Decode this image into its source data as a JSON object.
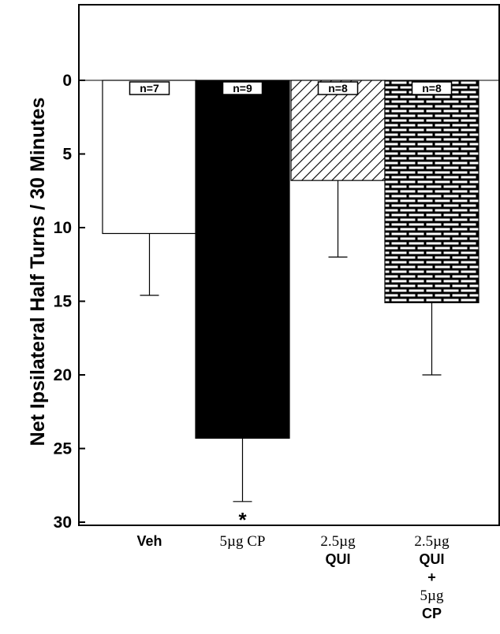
{
  "chart_data": {
    "type": "bar",
    "ylabel": "Net Ipsilateral Half Turns / 30 Minutes",
    "ylim": [
      0,
      30
    ],
    "y_inverted": true,
    "yticks": [
      "0",
      "5",
      "10",
      "15",
      "20",
      "25",
      "30"
    ],
    "categories": [
      {
        "lines": [
          "Veh"
        ]
      },
      {
        "lines": [
          "5µg CP"
        ]
      },
      {
        "lines": [
          "2.5µg",
          "QUI"
        ]
      },
      {
        "lines": [
          "2.5µg",
          "QUI",
          "+",
          "5µg",
          "CP"
        ]
      }
    ],
    "values": [
      10.4,
      24.3,
      6.8,
      15.1
    ],
    "errors": [
      4.2,
      4.3,
      5.2,
      4.9
    ],
    "n_labels": [
      "n=7",
      "n=9",
      "n=8",
      "n=8"
    ],
    "fills": [
      "white",
      "black",
      "diagonal-hatch",
      "brick"
    ],
    "significance": [
      "",
      "*",
      "",
      ""
    ]
  }
}
